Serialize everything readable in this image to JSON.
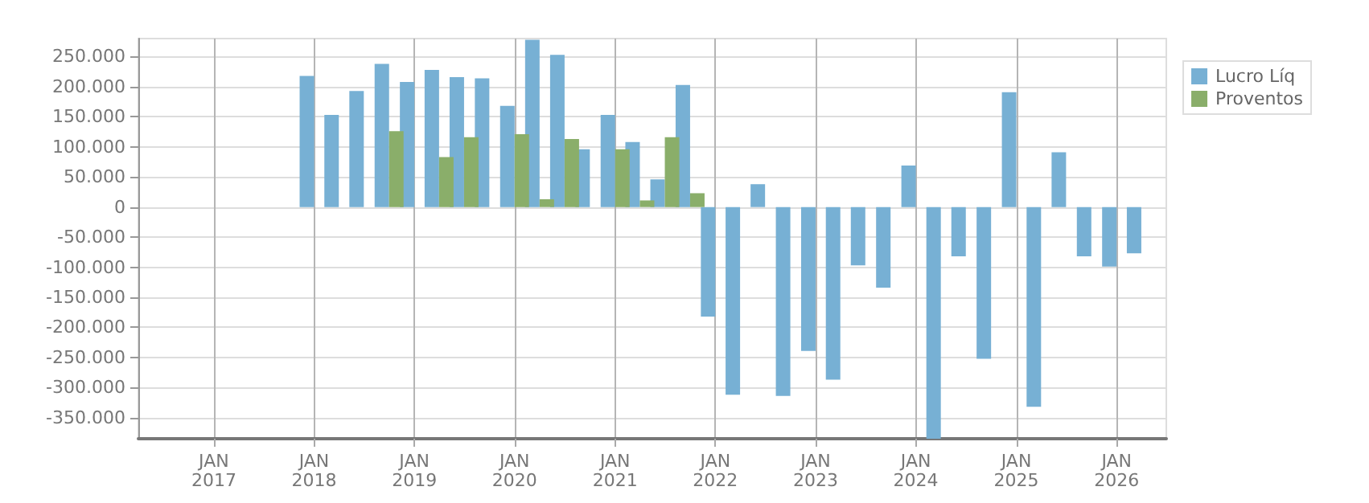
{
  "chart_data": {
    "type": "bar",
    "x": [
      "2018-01",
      "2018-04",
      "2018-07",
      "2018-10",
      "2019-01",
      "2019-04",
      "2019-07",
      "2019-10",
      "2020-01",
      "2020-04",
      "2020-07",
      "2020-10",
      "2021-01",
      "2021-04",
      "2021-07",
      "2021-10",
      "2022-01",
      "2022-04",
      "2022-07",
      "2022-10",
      "2023-01",
      "2023-04",
      "2023-07",
      "2023-10",
      "2024-01",
      "2024-04",
      "2024-07",
      "2024-10",
      "2025-01",
      "2025-04",
      "2025-07",
      "2025-10",
      "2026-01",
      "2026-04"
    ],
    "series": [
      {
        "name": "Lucro Líq",
        "color": "#77b0d4",
        "values": [
          218000,
          153000,
          193000,
          238000,
          208000,
          228000,
          216000,
          214000,
          168000,
          278000,
          253000,
          96000,
          153000,
          108000,
          46000,
          203000,
          -182000,
          -312000,
          38000,
          -314000,
          -239000,
          -287000,
          -97000,
          -134000,
          69000,
          -385000,
          -82000,
          -252000,
          191000,
          -332000,
          91000,
          -82000,
          -99000,
          -77000
        ]
      },
      {
        "name": "Proventos",
        "color": "#8aae6a",
        "values": [
          0,
          0,
          0,
          126000,
          0,
          83000,
          116000,
          0,
          121000,
          13000,
          113000,
          0,
          96000,
          11000,
          116000,
          23000,
          0,
          0,
          0,
          0,
          0,
          0,
          0,
          0,
          0,
          0,
          0,
          0,
          0,
          0,
          0,
          0,
          0,
          0
        ]
      }
    ],
    "xlim": [
      "2016-04",
      "2026-07"
    ],
    "xticks": [
      {
        "value": "2017-01",
        "label": "JAN\n2017"
      },
      {
        "value": "2018-01",
        "label": "JAN\n2018"
      },
      {
        "value": "2019-01",
        "label": "JAN\n2019"
      },
      {
        "value": "2020-01",
        "label": "JAN\n2020"
      },
      {
        "value": "2021-01",
        "label": "JAN\n2021"
      },
      {
        "value": "2022-01",
        "label": "JAN\n2022"
      },
      {
        "value": "2023-01",
        "label": "JAN\n2023"
      },
      {
        "value": "2024-01",
        "label": "JAN\n2024"
      },
      {
        "value": "2025-01",
        "label": "JAN\n2025"
      },
      {
        "value": "2026-01",
        "label": "JAN\n2026"
      }
    ],
    "ylim": [
      -385000,
      280000
    ],
    "yticks": [
      {
        "value": -350000,
        "label": "-350.000"
      },
      {
        "value": -300000,
        "label": "-300.000"
      },
      {
        "value": -250000,
        "label": "-250.000"
      },
      {
        "value": -200000,
        "label": "-200.000"
      },
      {
        "value": -150000,
        "label": "-150.000"
      },
      {
        "value": -100000,
        "label": "-100.000"
      },
      {
        "value": -50000,
        "label": "-50.000"
      },
      {
        "value": 0,
        "label": "0"
      },
      {
        "value": 50000,
        "label": "50.000"
      },
      {
        "value": 100000,
        "label": "100.000"
      },
      {
        "value": 150000,
        "label": "150.000"
      },
      {
        "value": 200000,
        "label": "200.000"
      },
      {
        "value": 250000,
        "label": "250.000"
      }
    ],
    "grid": true,
    "legend": "top right"
  }
}
